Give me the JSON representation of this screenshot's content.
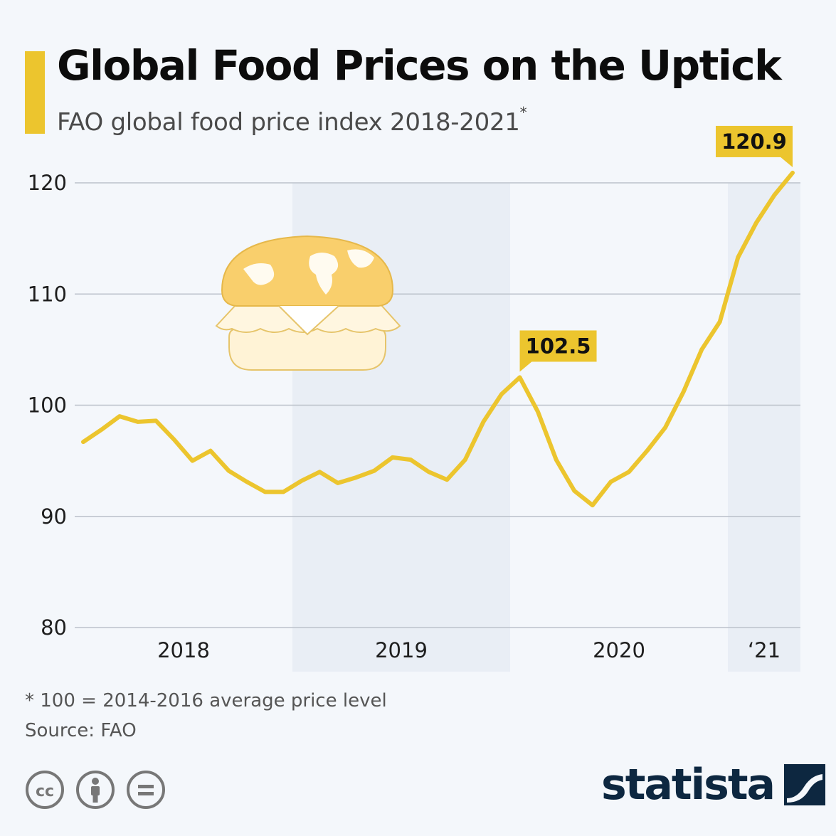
{
  "header": {
    "title": "Global Food Prices on the Uptick",
    "subtitle": "FAO global food price index 2018-2021",
    "subtitle_marker": "*"
  },
  "footer": {
    "note": "* 100 = 2014-2016 average price level",
    "source": "Source: FAO",
    "brand": "statista",
    "license_icons": [
      "cc-icon",
      "person-icon",
      "no-derivatives-icon"
    ]
  },
  "colors": {
    "line": "#ecc52e",
    "callout": "#ecc52e",
    "band": "#e9eef5",
    "grid": "#bcc2cb",
    "brand": "#0d2740"
  },
  "chart_data": {
    "type": "line",
    "title": "Global Food Prices on the Uptick",
    "xlabel": "",
    "ylabel": "",
    "ylim": [
      80,
      120
    ],
    "yticks": [
      80,
      90,
      100,
      110,
      120
    ],
    "year_labels": [
      "2018",
      "2019",
      "2020",
      "‘21"
    ],
    "grid": true,
    "shaded_years": [
      "2019",
      "‘21"
    ],
    "series": [
      {
        "values": [
          96.7,
          97.8,
          99.0,
          98.5,
          98.6,
          96.9,
          95.0,
          95.9,
          94.1,
          93.1,
          92.2,
          92.2,
          93.2,
          94.0,
          93.0,
          93.5,
          94.1,
          95.3,
          95.1,
          94.0,
          93.3,
          95.1,
          98.5,
          101.0,
          102.5,
          99.4,
          95.1,
          92.3,
          91.0,
          93.1,
          94.0,
          95.9,
          98.0,
          101.2,
          105.0,
          107.5,
          113.3,
          116.4,
          118.9,
          120.9
        ]
      }
    ],
    "annotations": [
      {
        "label": "102.5",
        "index": 24
      },
      {
        "label": "120.9",
        "index": 39
      }
    ]
  }
}
